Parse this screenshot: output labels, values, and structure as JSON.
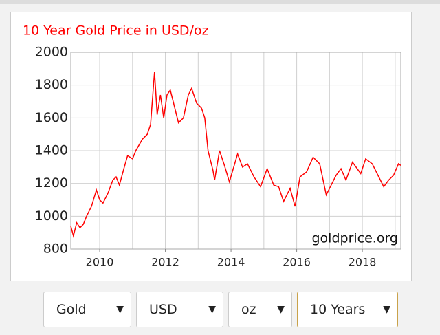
{
  "chart_data": {
    "type": "line",
    "title": "10 Year Gold Price in USD/oz",
    "annotation": "goldprice.org",
    "x": [
      2009.12,
      2009.2,
      2009.3,
      2009.4,
      2009.5,
      2009.6,
      2009.75,
      2009.9,
      2010.0,
      2010.1,
      2010.25,
      2010.4,
      2010.5,
      2010.6,
      2010.75,
      2010.85,
      2011.0,
      2011.1,
      2011.3,
      2011.45,
      2011.55,
      2011.67,
      2011.75,
      2011.85,
      2011.95,
      2012.05,
      2012.15,
      2012.3,
      2012.4,
      2012.55,
      2012.7,
      2012.8,
      2012.95,
      2013.1,
      2013.2,
      2013.3,
      2013.45,
      2013.5,
      2013.65,
      2013.8,
      2013.95,
      2014.2,
      2014.35,
      2014.5,
      2014.7,
      2014.9,
      2015.1,
      2015.3,
      2015.45,
      2015.6,
      2015.8,
      2015.95,
      2016.1,
      2016.3,
      2016.5,
      2016.7,
      2016.9,
      2017.0,
      2017.2,
      2017.35,
      2017.5,
      2017.7,
      2017.95,
      2018.1,
      2018.3,
      2018.5,
      2018.65,
      2018.8,
      2018.95,
      2019.1,
      2019.17
    ],
    "series": [
      {
        "name": "Gold",
        "color": "#ff0000",
        "values": [
          940,
          880,
          960,
          930,
          950,
          1000,
          1060,
          1160,
          1100,
          1080,
          1140,
          1220,
          1240,
          1190,
          1300,
          1370,
          1350,
          1400,
          1470,
          1500,
          1560,
          1880,
          1620,
          1740,
          1600,
          1740,
          1770,
          1650,
          1570,
          1600,
          1740,
          1780,
          1690,
          1660,
          1600,
          1400,
          1280,
          1220,
          1400,
          1310,
          1210,
          1380,
          1300,
          1320,
          1240,
          1180,
          1290,
          1190,
          1180,
          1090,
          1170,
          1060,
          1240,
          1270,
          1360,
          1320,
          1130,
          1170,
          1250,
          1290,
          1220,
          1330,
          1260,
          1350,
          1320,
          1240,
          1180,
          1220,
          1250,
          1320,
          1310
        ]
      }
    ],
    "xlim": [
      2009.12,
      2019.17
    ],
    "xticks": [
      2010,
      2012,
      2014,
      2016,
      2018
    ],
    "x_grid_lines": [
      2010,
      2011,
      2012,
      2013,
      2014,
      2015,
      2016,
      2017,
      2018,
      2019
    ],
    "ylim": [
      800,
      2000
    ],
    "yticks": [
      800,
      1000,
      1200,
      1400,
      1600,
      1800,
      2000
    ],
    "grid": true
  },
  "controls": [
    "Gold",
    "USD",
    "oz",
    "10 Years"
  ]
}
